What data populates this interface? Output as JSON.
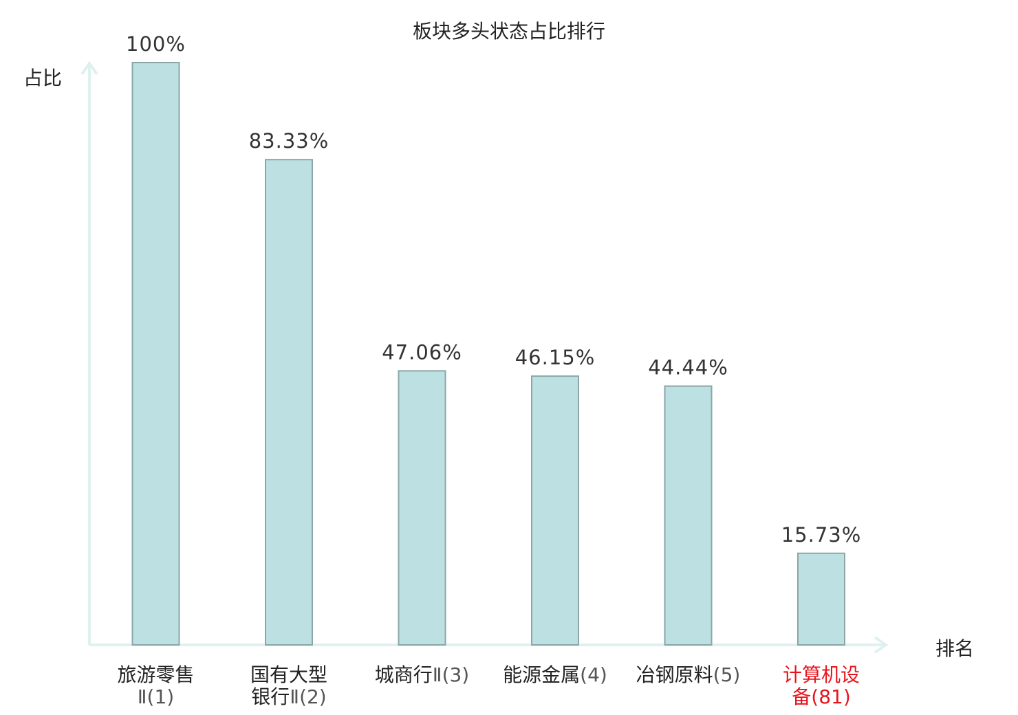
{
  "chart_data": {
    "type": "bar",
    "title": "板块多头状态占比排行",
    "ylabel": "占比",
    "xlabel": "排名",
    "ylim": [
      0,
      100
    ],
    "grid": false,
    "categories": [
      {
        "name": "旅游零售",
        "line2_prefix": "",
        "suffix": "Ⅱ(1)"
      },
      {
        "name": "国有大型",
        "line2_prefix": "银行",
        "suffix": "Ⅱ(2)"
      },
      {
        "name": "城商行",
        "line2_prefix": "",
        "suffix": "Ⅱ(3)"
      },
      {
        "name": "能源金属",
        "line2_prefix": "",
        "suffix": "(4)"
      },
      {
        "name": "冶钢原料",
        "line2_prefix": "",
        "suffix": "(5)"
      },
      {
        "name": "计算机设",
        "line2_prefix": "备",
        "suffix": "(81)"
      }
    ],
    "values": [
      100,
      83.33,
      47.06,
      46.15,
      44.44,
      15.73
    ],
    "data_labels": [
      "100%",
      "83.33%",
      "47.06%",
      "46.15%",
      "44.44%",
      "15.73%"
    ],
    "highlight_index": 5,
    "colors": {
      "bar_fill": "#bde0e2",
      "bar_stroke": "#8aa6a8",
      "axis": "#dff1ef",
      "label": "#333333",
      "highlight": "#e8141c"
    }
  }
}
